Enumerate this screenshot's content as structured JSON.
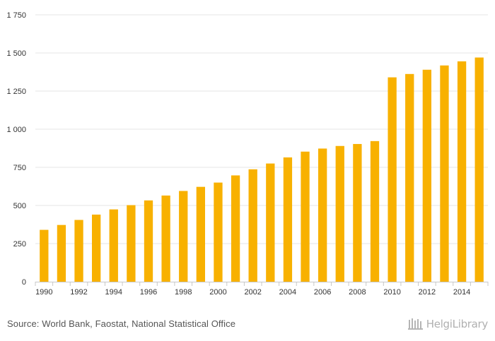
{
  "chart_data": {
    "type": "bar",
    "categories": [
      "1990",
      "1991",
      "1992",
      "1993",
      "1994",
      "1995",
      "1996",
      "1997",
      "1998",
      "1999",
      "2000",
      "2001",
      "2002",
      "2003",
      "2004",
      "2005",
      "2006",
      "2007",
      "2008",
      "2009",
      "2010",
      "2011",
      "2012",
      "2013",
      "2014",
      "2015"
    ],
    "x_tick_labels": [
      "1990",
      "1992",
      "1994",
      "1996",
      "1998",
      "2000",
      "2002",
      "2004",
      "2006",
      "2008",
      "2010",
      "2012",
      "2014"
    ],
    "values": [
      340,
      372,
      405,
      440,
      474,
      502,
      533,
      565,
      595,
      622,
      650,
      697,
      737,
      775,
      815,
      853,
      873,
      890,
      903,
      922,
      1340,
      1362,
      1390,
      1418,
      1445,
      1470
    ],
    "ylim": [
      0,
      1750
    ],
    "y_ticks": [
      0,
      250,
      500,
      750,
      1000,
      1250,
      1500,
      1750
    ],
    "y_tick_labels": [
      "0",
      "250",
      "500",
      "750",
      "1 000",
      "1 250",
      "1 500",
      "1 750"
    ],
    "grid": true,
    "bar_color": "#F8B100",
    "title": "",
    "xlabel": "",
    "ylabel": ""
  },
  "footer": {
    "source": "Source: World Bank, Faostat, National Statistical Office",
    "brand": "HelgiLibrary"
  },
  "colors": {
    "grid": "#e6e6e6",
    "axis": "#c8c8c8",
    "brand": "#b0b0b0"
  }
}
